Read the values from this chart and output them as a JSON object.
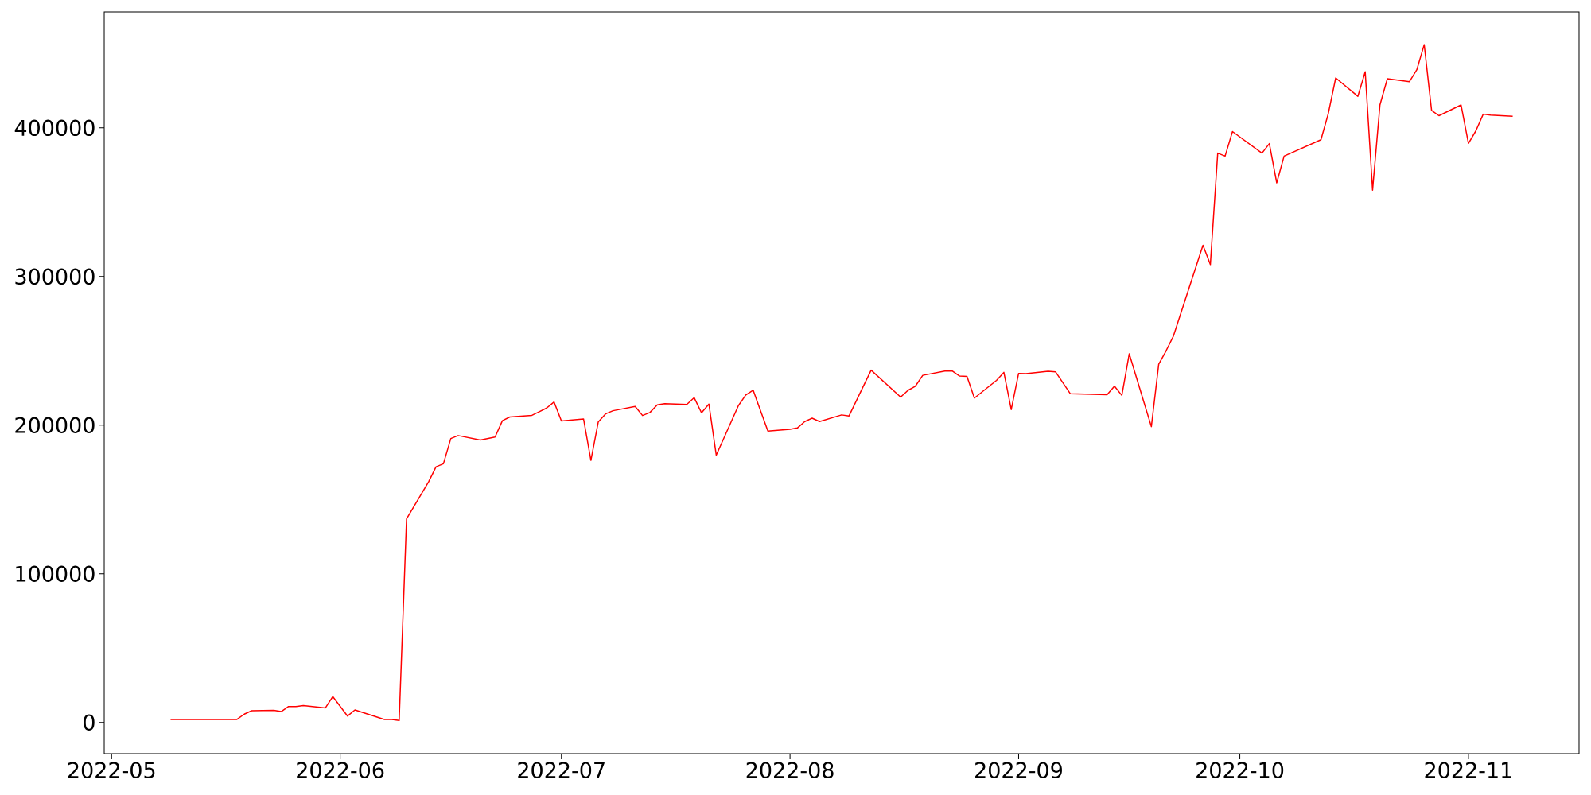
{
  "chart_data": {
    "type": "line",
    "color": "#ff0000",
    "x": [
      "2022-05-09",
      "2022-05-18",
      "2022-05-19",
      "2022-05-20",
      "2022-05-23",
      "2022-05-24",
      "2022-05-25",
      "2022-05-26",
      "2022-05-27",
      "2022-05-30",
      "2022-05-31",
      "2022-06-02",
      "2022-06-03",
      "2022-06-07",
      "2022-06-08",
      "2022-06-09",
      "2022-06-10",
      "2022-06-13",
      "2022-06-14",
      "2022-06-15",
      "2022-06-16",
      "2022-06-17",
      "2022-06-20",
      "2022-06-21",
      "2022-06-22",
      "2022-06-23",
      "2022-06-24",
      "2022-06-27",
      "2022-06-28",
      "2022-06-29",
      "2022-06-30",
      "2022-07-01",
      "2022-07-04",
      "2022-07-05",
      "2022-07-06",
      "2022-07-07",
      "2022-07-08",
      "2022-07-11",
      "2022-07-12",
      "2022-07-13",
      "2022-07-14",
      "2022-07-15",
      "2022-07-18",
      "2022-07-19",
      "2022-07-20",
      "2022-07-21",
      "2022-07-22",
      "2022-07-25",
      "2022-07-26",
      "2022-07-27",
      "2022-07-29",
      "2022-08-01",
      "2022-08-02",
      "2022-08-03",
      "2022-08-04",
      "2022-08-05",
      "2022-08-08",
      "2022-08-09",
      "2022-08-12",
      "2022-08-16",
      "2022-08-17",
      "2022-08-18",
      "2022-08-19",
      "2022-08-22",
      "2022-08-23",
      "2022-08-24",
      "2022-08-25",
      "2022-08-26",
      "2022-08-29",
      "2022-08-30",
      "2022-08-31",
      "2022-09-01",
      "2022-09-02",
      "2022-09-05",
      "2022-09-06",
      "2022-09-08",
      "2022-09-13",
      "2022-09-14",
      "2022-09-15",
      "2022-09-16",
      "2022-09-19",
      "2022-09-20",
      "2022-09-21",
      "2022-09-22",
      "2022-09-26",
      "2022-09-27",
      "2022-09-28",
      "2022-09-29",
      "2022-09-30",
      "2022-10-04",
      "2022-10-05",
      "2022-10-06",
      "2022-10-07",
      "2022-10-12",
      "2022-10-13",
      "2022-10-14",
      "2022-10-17",
      "2022-10-18",
      "2022-10-19",
      "2022-10-20",
      "2022-10-21",
      "2022-10-24",
      "2022-10-25",
      "2022-10-26",
      "2022-10-27",
      "2022-10-28",
      "2022-10-31",
      "2022-11-01",
      "2022-11-02",
      "2022-11-03",
      "2022-11-04",
      "2022-11-07"
    ],
    "values": [
      2000,
      2000,
      5600,
      7900,
      8100,
      7300,
      10700,
      10700,
      11400,
      9800,
      17400,
      4300,
      8400,
      2000,
      2000,
      1300,
      137000,
      162000,
      172000,
      174000,
      191000,
      193000,
      190000,
      191000,
      192000,
      203000,
      205500,
      206600,
      209000,
      211500,
      215600,
      202800,
      204200,
      176300,
      202200,
      207600,
      209700,
      212600,
      206500,
      208500,
      213700,
      214400,
      213900,
      218500,
      208300,
      214200,
      179800,
      213100,
      220300,
      223500,
      196000,
      197200,
      198100,
      202400,
      204700,
      202400,
      206900,
      206200,
      237000,
      218900,
      223400,
      226200,
      233500,
      236400,
      236400,
      233000,
      232800,
      218200,
      230100,
      235500,
      210500,
      234800,
      234600,
      236200,
      235900,
      221200,
      220500,
      226200,
      220000,
      248000,
      199000,
      241000,
      250000,
      260000,
      321000,
      308000,
      383000,
      381000,
      397500,
      383000,
      389400,
      363000,
      381000,
      392000,
      409700,
      433600,
      421200,
      437700,
      358100,
      415400,
      433100,
      431100,
      439100,
      456000,
      411700,
      408200,
      415400,
      389600,
      397900,
      409200,
      408600,
      407800
    ],
    "xlim": [
      "2022-04-30",
      "2022-11-16"
    ],
    "ylim": [
      -21000,
      478000
    ],
    "xticks": [
      {
        "value": "2022-05-01",
        "label": "2022-05"
      },
      {
        "value": "2022-06-01",
        "label": "2022-06"
      },
      {
        "value": "2022-07-01",
        "label": "2022-07"
      },
      {
        "value": "2022-08-01",
        "label": "2022-08"
      },
      {
        "value": "2022-09-01",
        "label": "2022-09"
      },
      {
        "value": "2022-10-01",
        "label": "2022-10"
      },
      {
        "value": "2022-11-01",
        "label": "2022-11"
      }
    ],
    "yticks": [
      0,
      100000,
      200000,
      300000,
      400000
    ]
  }
}
